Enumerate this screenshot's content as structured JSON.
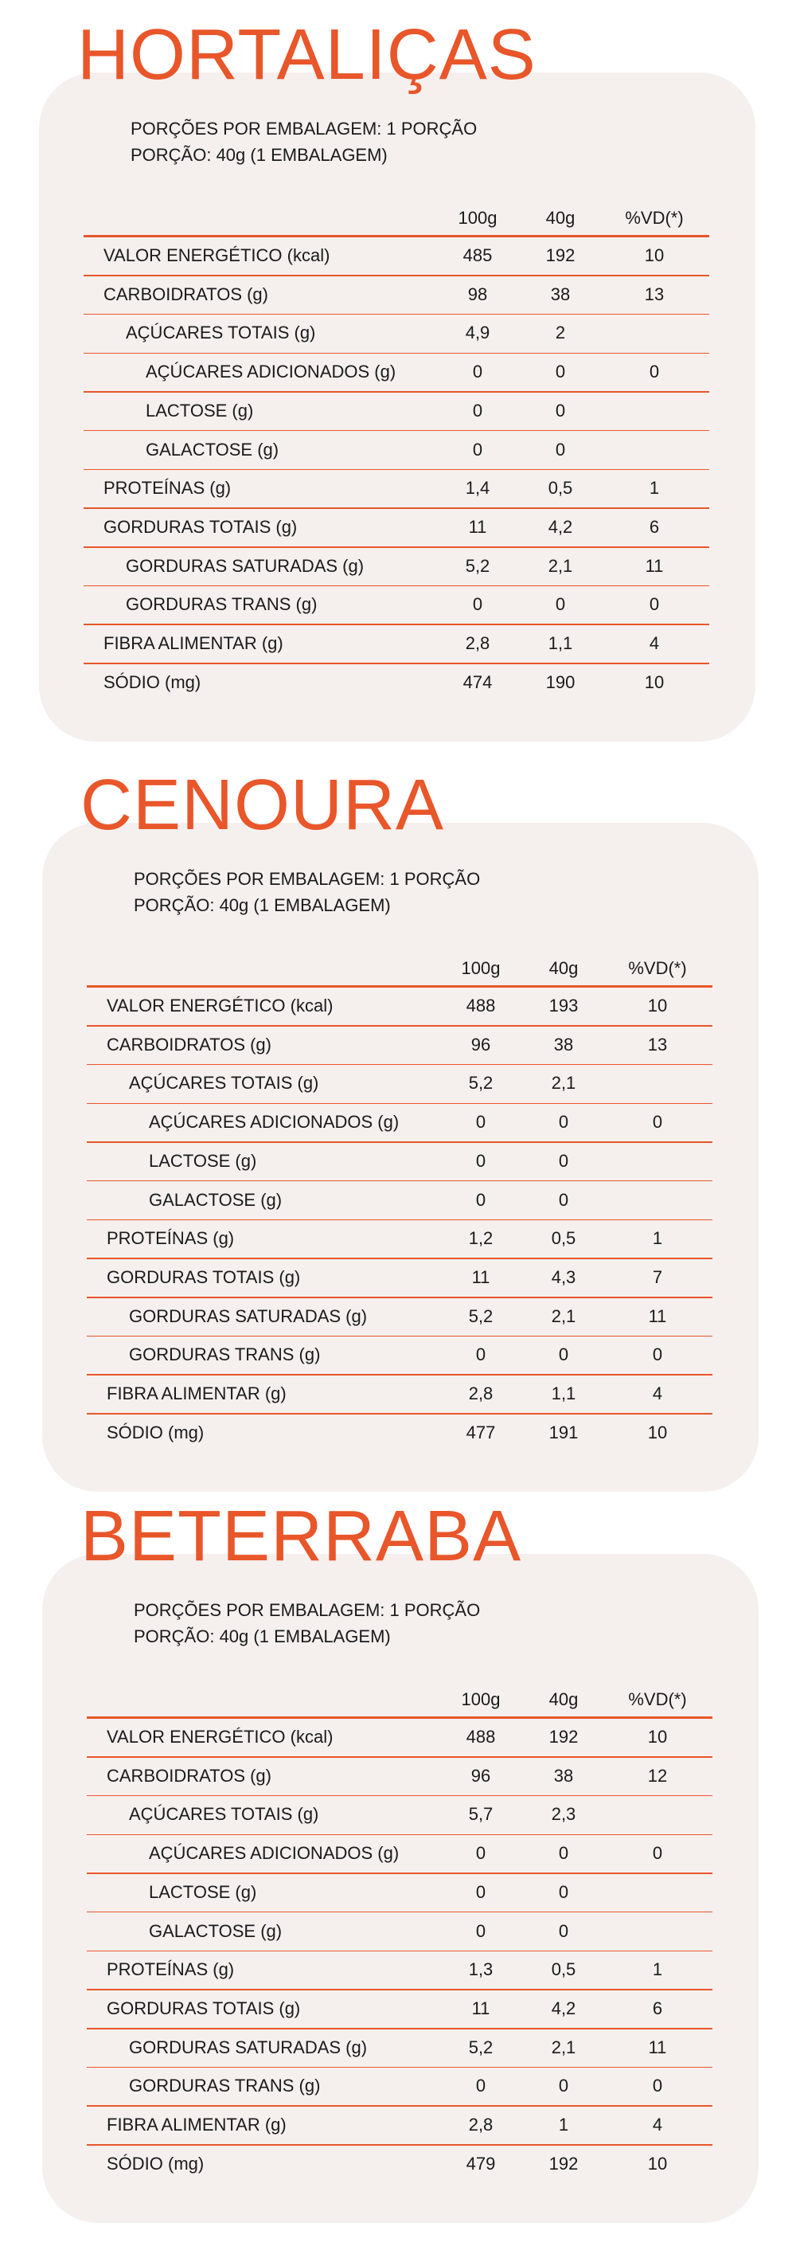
{
  "colors": {
    "accent": "#E8562A",
    "card": "#F5F0EE"
  },
  "columns": [
    "100g",
    "40g",
    "%VD(*)"
  ],
  "products": [
    {
      "title": "HORTALIÇAS",
      "portions_per_package": "PORÇÕES POR EMBALAGEM: 1 PORÇÃO",
      "portion": "PORÇÃO: 40g (1 EMBALAGEM)",
      "rows": [
        {
          "label": "VALOR ENERGÉTICO (kcal)",
          "indent": 0,
          "v100": "485",
          "v40": "192",
          "vd": "10"
        },
        {
          "label": "CARBOIDRATOS (g)",
          "indent": 0,
          "v100": "98",
          "v40": "38",
          "vd": "13"
        },
        {
          "label": "AÇÚCARES TOTAIS (g)",
          "indent": 1,
          "v100": "4,9",
          "v40": "2",
          "vd": ""
        },
        {
          "label": "AÇÚCARES ADICIONADOS (g)",
          "indent": 2,
          "v100": "0",
          "v40": "0",
          "vd": "0"
        },
        {
          "label": "LACTOSE (g)",
          "indent": 2,
          "v100": "0",
          "v40": "0",
          "vd": ""
        },
        {
          "label": "GALACTOSE (g)",
          "indent": 2,
          "v100": "0",
          "v40": "0",
          "vd": ""
        },
        {
          "label": "PROTEÍNAS (g)",
          "indent": 0,
          "v100": "1,4",
          "v40": "0,5",
          "vd": "1"
        },
        {
          "label": "GORDURAS TOTAIS (g)",
          "indent": 0,
          "v100": "11",
          "v40": "4,2",
          "vd": "6"
        },
        {
          "label": "GORDURAS SATURADAS (g)",
          "indent": 1,
          "v100": "5,2",
          "v40": "2,1",
          "vd": "11"
        },
        {
          "label": "GORDURAS TRANS (g)",
          "indent": 1,
          "v100": "0",
          "v40": "0",
          "vd": "0"
        },
        {
          "label": "FIBRA ALIMENTAR (g)",
          "indent": 0,
          "v100": "2,8",
          "v40": "1,1",
          "vd": "4"
        },
        {
          "label": "SÓDIO (mg)",
          "indent": 0,
          "v100": "474",
          "v40": "190",
          "vd": "10"
        }
      ]
    },
    {
      "title": "CENOURA",
      "portions_per_package": "PORÇÕES POR EMBALAGEM: 1 PORÇÃO",
      "portion": "PORÇÃO: 40g (1 EMBALAGEM)",
      "rows": [
        {
          "label": "VALOR ENERGÉTICO (kcal)",
          "indent": 0,
          "v100": "488",
          "v40": "193",
          "vd": "10"
        },
        {
          "label": "CARBOIDRATOS (g)",
          "indent": 0,
          "v100": "96",
          "v40": "38",
          "vd": "13"
        },
        {
          "label": "AÇÚCARES TOTAIS (g)",
          "indent": 1,
          "v100": "5,2",
          "v40": "2,1",
          "vd": ""
        },
        {
          "label": "AÇÚCARES ADICIONADOS (g)",
          "indent": 2,
          "v100": "0",
          "v40": "0",
          "vd": "0"
        },
        {
          "label": "LACTOSE (g)",
          "indent": 2,
          "v100": "0",
          "v40": "0",
          "vd": ""
        },
        {
          "label": "GALACTOSE (g)",
          "indent": 2,
          "v100": "0",
          "v40": "0",
          "vd": ""
        },
        {
          "label": "PROTEÍNAS (g)",
          "indent": 0,
          "v100": "1,2",
          "v40": "0,5",
          "vd": "1"
        },
        {
          "label": "GORDURAS TOTAIS (g)",
          "indent": 0,
          "v100": "11",
          "v40": "4,3",
          "vd": "7"
        },
        {
          "label": "GORDURAS SATURADAS (g)",
          "indent": 1,
          "v100": "5,2",
          "v40": "2,1",
          "vd": "11"
        },
        {
          "label": "GORDURAS TRANS (g)",
          "indent": 1,
          "v100": "0",
          "v40": "0",
          "vd": "0"
        },
        {
          "label": "FIBRA ALIMENTAR (g)",
          "indent": 0,
          "v100": "2,8",
          "v40": "1,1",
          "vd": "4"
        },
        {
          "label": "SÓDIO (mg)",
          "indent": 0,
          "v100": "477",
          "v40": "191",
          "vd": "10"
        }
      ]
    },
    {
      "title": "BETERRABA",
      "portions_per_package": "PORÇÕES POR EMBALAGEM: 1 PORÇÃO",
      "portion": "PORÇÃO: 40g (1 EMBALAGEM)",
      "rows": [
        {
          "label": "VALOR ENERGÉTICO (kcal)",
          "indent": 0,
          "v100": "488",
          "v40": "192",
          "vd": "10"
        },
        {
          "label": "CARBOIDRATOS (g)",
          "indent": 0,
          "v100": "96",
          "v40": "38",
          "vd": "12"
        },
        {
          "label": "AÇÚCARES TOTAIS (g)",
          "indent": 1,
          "v100": "5,7",
          "v40": "2,3",
          "vd": ""
        },
        {
          "label": "AÇÚCARES ADICIONADOS (g)",
          "indent": 2,
          "v100": "0",
          "v40": "0",
          "vd": "0"
        },
        {
          "label": "LACTOSE (g)",
          "indent": 2,
          "v100": "0",
          "v40": "0",
          "vd": ""
        },
        {
          "label": "GALACTOSE (g)",
          "indent": 2,
          "v100": "0",
          "v40": "0",
          "vd": ""
        },
        {
          "label": "PROTEÍNAS (g)",
          "indent": 0,
          "v100": "1,3",
          "v40": "0,5",
          "vd": "1"
        },
        {
          "label": "GORDURAS TOTAIS (g)",
          "indent": 0,
          "v100": "11",
          "v40": "4,2",
          "vd": "6"
        },
        {
          "label": "GORDURAS SATURADAS (g)",
          "indent": 1,
          "v100": "5,2",
          "v40": "2,1",
          "vd": "11"
        },
        {
          "label": "GORDURAS TRANS (g)",
          "indent": 1,
          "v100": "0",
          "v40": "0",
          "vd": "0"
        },
        {
          "label": "FIBRA ALIMENTAR (g)",
          "indent": 0,
          "v100": "2,8",
          "v40": "1",
          "vd": "4"
        },
        {
          "label": "SÓDIO (mg)",
          "indent": 0,
          "v100": "479",
          "v40": "192",
          "vd": "10"
        }
      ]
    }
  ]
}
